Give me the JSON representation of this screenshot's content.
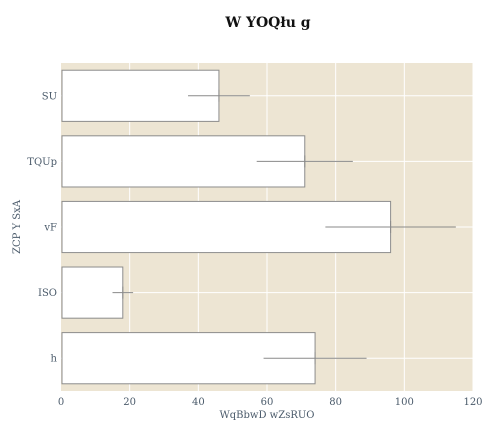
{
  "colors": {
    "plot_bg": "#ede5d3",
    "grid": "#ffffff",
    "bar_fill": "#ffffff",
    "bar_stroke": "#8c8c8c",
    "error_bar": "#8a8a8a",
    "text": "#4a5a6a",
    "title": "#111111"
  },
  "chart_data": {
    "type": "bar",
    "orientation": "horizontal",
    "title": "W YOQłu g",
    "xlabel": "WqBbwD wZsRUO",
    "ylabel": "ZCP Y SxA",
    "xlim": [
      0,
      120
    ],
    "x_ticks": [
      0,
      20,
      40,
      60,
      80,
      100,
      120
    ],
    "categories": [
      "SU",
      "TQUp",
      "vF",
      "ISO",
      "h"
    ],
    "values": [
      46,
      71,
      96,
      18,
      74
    ],
    "errors": [
      9,
      14,
      19,
      3,
      15
    ],
    "grid": true,
    "legend": "none"
  }
}
